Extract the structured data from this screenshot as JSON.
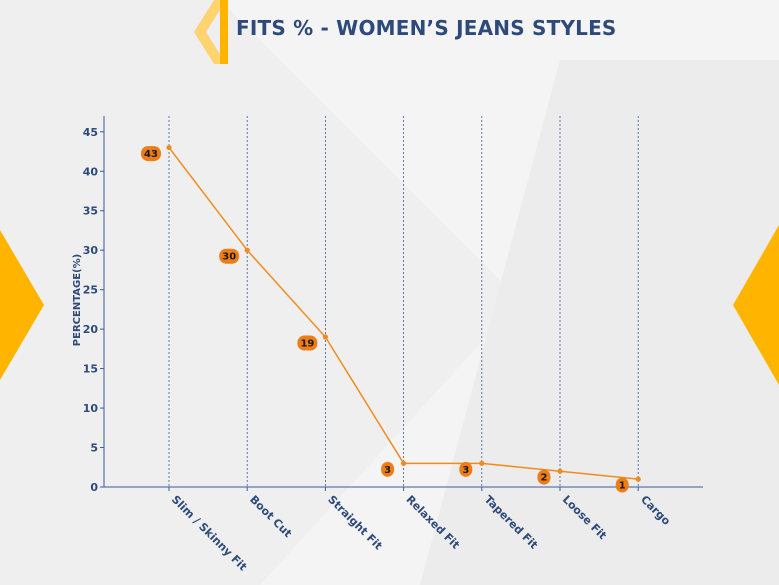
{
  "header": {
    "title": "FITS % - WOMEN’S JEANS STYLES"
  },
  "colors": {
    "accent": "#ffb400",
    "line": "#f28b1e",
    "label_bg": "#ee7d15",
    "title": "#2e4a7a",
    "grid": "#3a5a9a"
  },
  "chart_data": {
    "type": "line",
    "title": "FITS % - WOMEN’S JEANS STYLES",
    "xlabel": "",
    "ylabel": "PERCENTAGE(%)",
    "categories": [
      "Slim / Skinny Fit",
      "Boot Cut",
      "Straight Fit",
      "Relaxed Fit",
      "Tapered Fit",
      "Loose Fit",
      "Cargo"
    ],
    "series": [
      {
        "values": [
          43,
          30,
          19,
          3,
          3,
          2,
          1
        ]
      }
    ],
    "ylim": [
      0,
      47
    ],
    "yticks": [
      0,
      5,
      10,
      15,
      20,
      25,
      30,
      35,
      40,
      45
    ],
    "grid": "vertical dashed at categories",
    "legend": "none"
  }
}
